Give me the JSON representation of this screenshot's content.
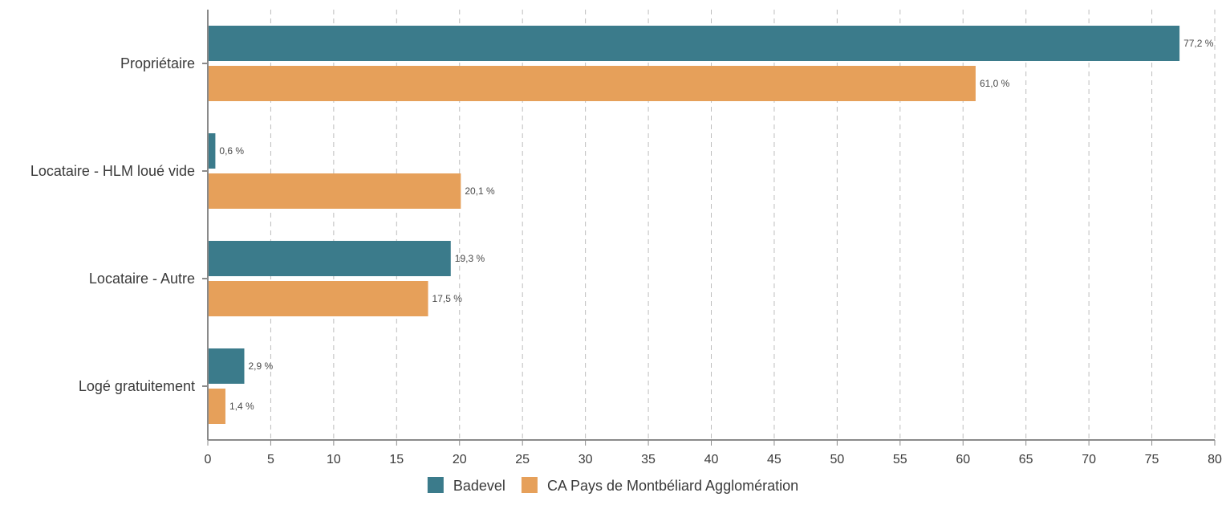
{
  "chart_data": {
    "type": "bar",
    "orientation": "horizontal",
    "categories": [
      "Propriétaire",
      "Locataire - HLM loué vide",
      "Locataire - Autre",
      "Logé gratuitement"
    ],
    "series": [
      {
        "name": "Badevel",
        "color": "#3b7b8b",
        "values": [
          77.2,
          0.6,
          19.3,
          2.9
        ],
        "labels": [
          "77,2 %",
          "0,6 %",
          "19,3 %",
          "2,9 %"
        ]
      },
      {
        "name": "CA Pays de Montbéliard Agglomération",
        "color": "#e6a05a",
        "values": [
          61.0,
          20.1,
          17.5,
          1.4
        ],
        "labels": [
          "61,0 %",
          "20,1 %",
          "17,5 %",
          "1,4 %"
        ]
      }
    ],
    "xlim": [
      0,
      80
    ],
    "xticks": [
      0,
      5,
      10,
      15,
      20,
      25,
      30,
      35,
      40,
      45,
      50,
      55,
      60,
      65,
      70,
      75,
      80
    ],
    "grid": true,
    "legend_position": "bottom"
  }
}
